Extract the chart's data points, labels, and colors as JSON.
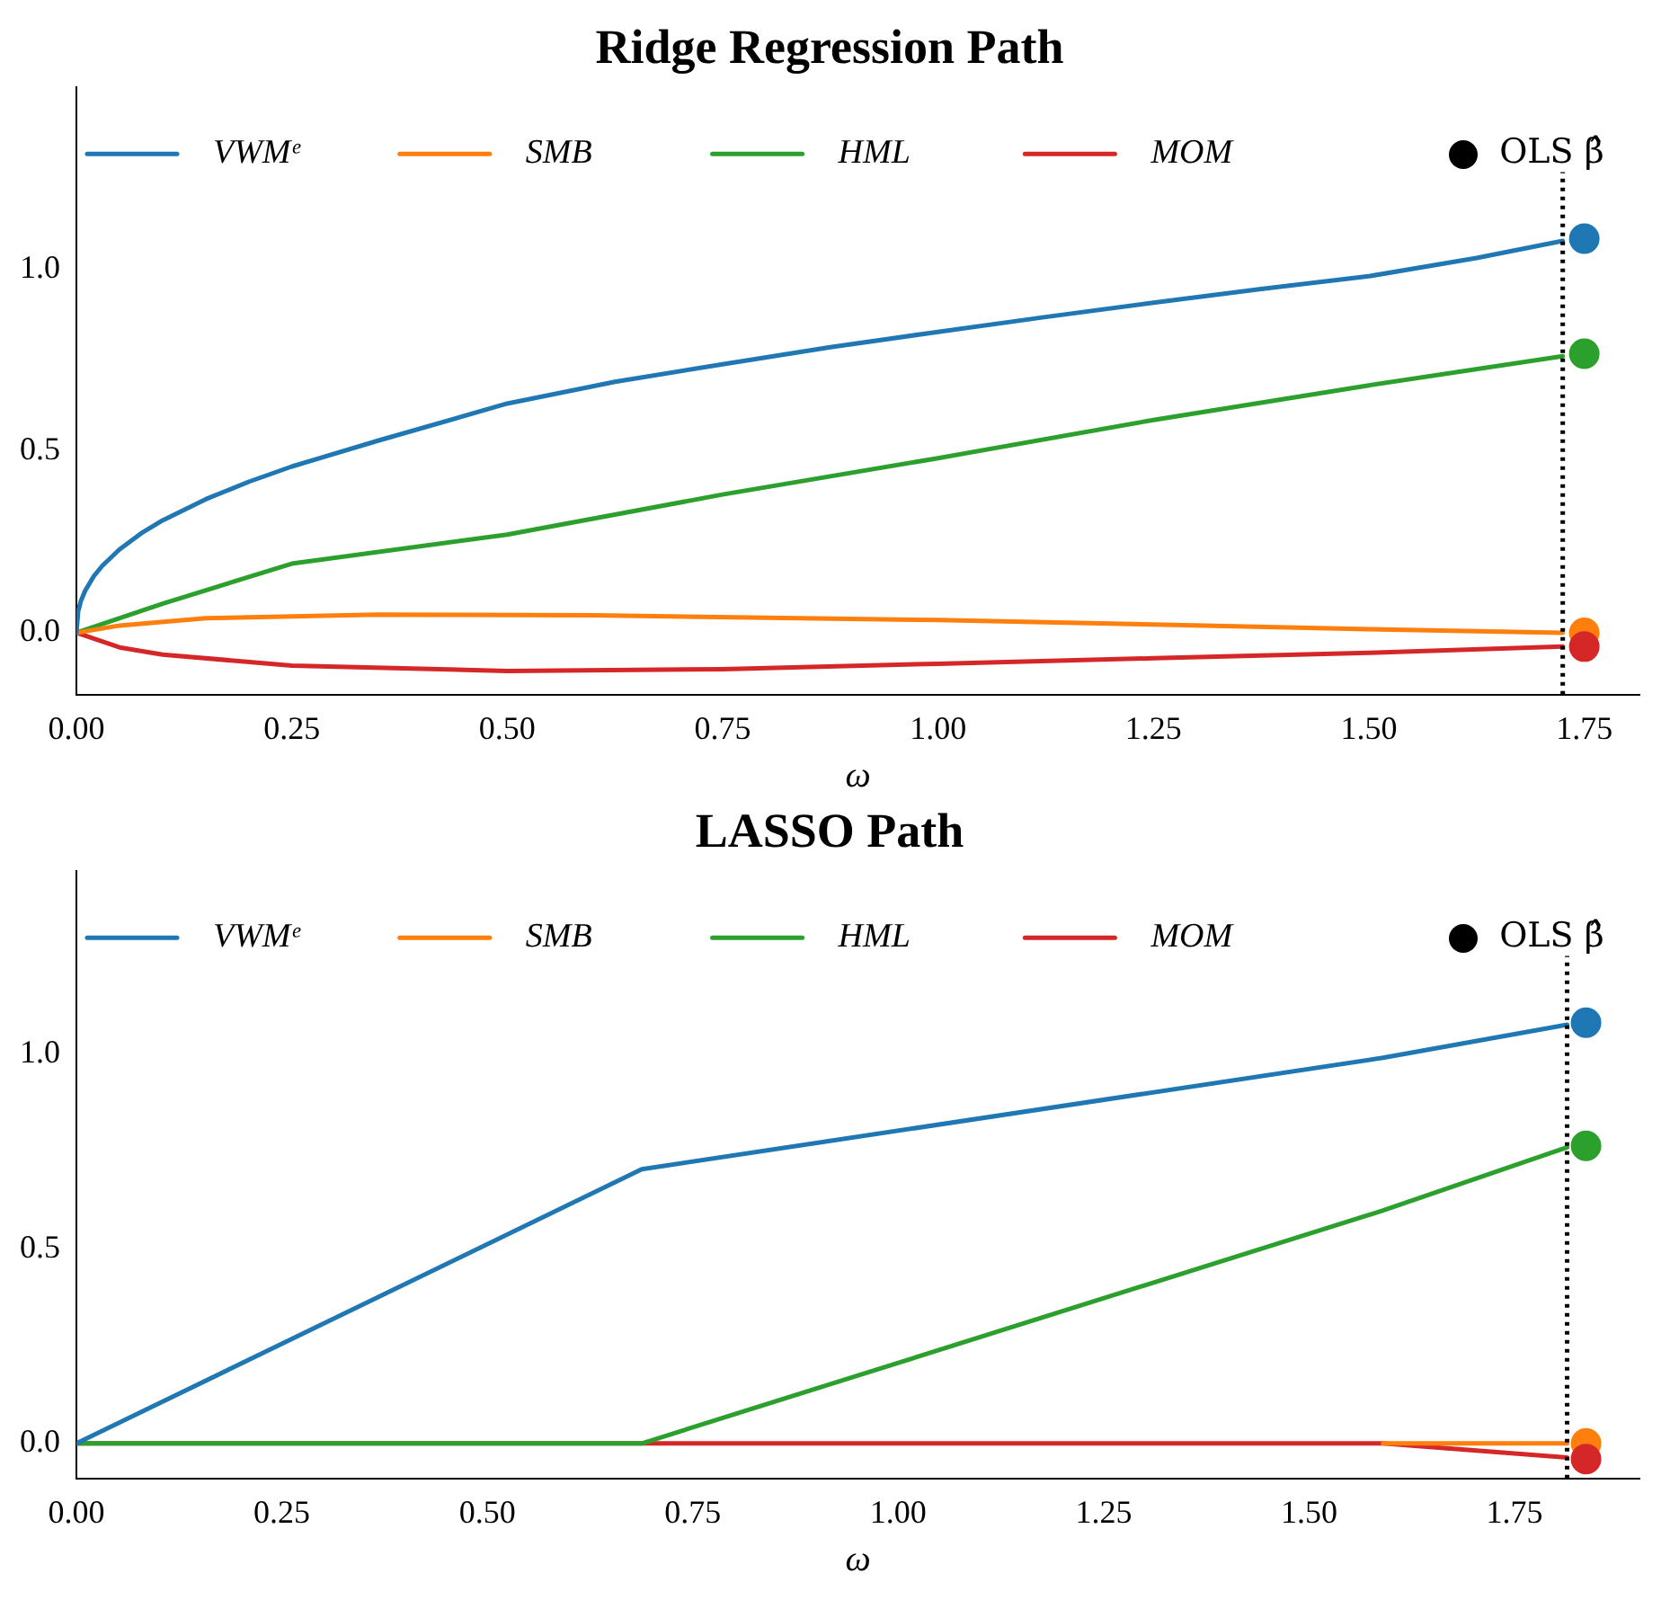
{
  "chart_data": [
    {
      "type": "line",
      "title": "Ridge Regression Path",
      "xlabel": "ω",
      "legend": "top",
      "grid": false,
      "marker": "none",
      "line_style": "solid",
      "xlim": [
        0,
        1.814
      ],
      "ylim": [
        -0.17,
        1.5
      ],
      "xticks": [
        {
          "value": 0,
          "label": "0.00"
        },
        {
          "value": 0.25,
          "label": "0.25"
        },
        {
          "value": 0.5,
          "label": "0.50"
        },
        {
          "value": 0.75,
          "label": "0.75"
        },
        {
          "value": 1,
          "label": "1.00"
        },
        {
          "value": 1.25,
          "label": "1.25"
        },
        {
          "value": 1.5,
          "label": "1.50"
        },
        {
          "value": 1.75,
          "label": "1.75"
        }
      ],
      "yticks": [
        {
          "value": 0,
          "label": "0.0"
        },
        {
          "value": 0.5,
          "label": "0.5"
        },
        {
          "value": 1,
          "label": "1.0"
        }
      ],
      "ref_lines": [
        {
          "axis": "x",
          "value": 1.725,
          "color": "#000000",
          "line_style": "dotted"
        }
      ],
      "series": [
        {
          "name": "VWMᵉ",
          "color": "#1f77b4",
          "x": [
            0,
            0.002,
            0.005,
            0.01,
            0.02,
            0.03,
            0.05,
            0.075,
            0.1,
            0.15,
            0.2,
            0.25,
            0.35,
            0.5,
            0.625,
            0.75,
            0.875,
            1,
            1.125,
            1.25,
            1.375,
            1.5,
            1.625,
            1.725
          ],
          "values": [
            0,
            0.058,
            0.086,
            0.115,
            0.155,
            0.184,
            0.229,
            0.273,
            0.309,
            0.367,
            0.415,
            0.457,
            0.528,
            0.63,
            0.69,
            0.738,
            0.785,
            0.827,
            0.868,
            0.907,
            0.945,
            0.98,
            1.03,
            1.077
          ]
        },
        {
          "name": "SMB",
          "color": "#ff7f0e",
          "x": [
            0,
            0.05,
            0.15,
            0.35,
            0.6,
            1,
            1.25,
            1.5,
            1.725
          ],
          "values": [
            0,
            0.02,
            0.04,
            0.05,
            0.048,
            0.035,
            0.023,
            0.01,
            0
          ]
        },
        {
          "name": "HML",
          "color": "#2ca02c",
          "x": [
            0,
            0.1,
            0.25,
            0.5,
            0.75,
            1,
            1.25,
            1.5,
            1.725
          ],
          "values": [
            0,
            0.08,
            0.19,
            0.27,
            0.38,
            0.48,
            0.585,
            0.68,
            0.76
          ]
        },
        {
          "name": "MOM",
          "color": "#d62728",
          "x": [
            0,
            0.05,
            0.1,
            0.25,
            0.5,
            0.75,
            1,
            1.25,
            1.5,
            1.725
          ],
          "values": [
            0,
            -0.04,
            -0.06,
            -0.09,
            -0.105,
            -0.1,
            -0.085,
            -0.07,
            -0.055,
            -0.038
          ]
        },
        {
          "name": "OLS β̂",
          "type": "scatter",
          "marker": "circle",
          "color": "#000000",
          "colors": [
            "#1f77b4",
            "#ff7f0e",
            "#2ca02c",
            "#d62728"
          ],
          "x": [
            1.75,
            1.75,
            1.75,
            1.75
          ],
          "values": [
            1.083,
            0,
            0.767,
            -0.038
          ]
        }
      ]
    },
    {
      "type": "line",
      "title": "LASSO Path",
      "xlabel": "ω",
      "legend": "top",
      "grid": false,
      "marker": "none",
      "line_style": "solid",
      "xlim": [
        0,
        1.902
      ],
      "ylim": [
        -0.09,
        1.47
      ],
      "xticks": [
        {
          "value": 0,
          "label": "0.00"
        },
        {
          "value": 0.25,
          "label": "0.25"
        },
        {
          "value": 0.5,
          "label": "0.50"
        },
        {
          "value": 0.75,
          "label": "0.75"
        },
        {
          "value": 1,
          "label": "1.00"
        },
        {
          "value": 1.25,
          "label": "1.25"
        },
        {
          "value": 1.5,
          "label": "1.50"
        },
        {
          "value": 1.75,
          "label": "1.75"
        }
      ],
      "yticks": [
        {
          "value": 0,
          "label": "0.0"
        },
        {
          "value": 0.5,
          "label": "0.5"
        },
        {
          "value": 1,
          "label": "1.0"
        }
      ],
      "ref_lines": [
        {
          "axis": "x",
          "value": 1.814,
          "color": "#000000",
          "line_style": "dotted"
        }
      ],
      "series": [
        {
          "name": "VWMᵉ",
          "color": "#1f77b4",
          "x": [
            0,
            0.688,
            1.59,
            1.814
          ],
          "values": [
            0,
            0.704,
            0.99,
            1.075
          ]
        },
        {
          "name": "SMB",
          "color": "#ff7f0e",
          "x": [
            1.59,
            1.814
          ],
          "values": [
            0,
            0
          ]
        },
        {
          "name": "HML",
          "color": "#2ca02c",
          "x": [
            0,
            0.688,
            1.59,
            1.814
          ],
          "values": [
            0,
            0,
            0.598,
            0.76
          ]
        },
        {
          "name": "MOM",
          "color": "#d62728",
          "x": [
            0,
            0.688,
            1.59,
            1.814
          ],
          "values": [
            0,
            0,
            0,
            -0.036
          ]
        },
        {
          "name": "OLS β̂",
          "type": "scatter",
          "marker": "circle",
          "color": "#000000",
          "colors": [
            "#1f77b4",
            "#ff7f0e",
            "#2ca02c",
            "#d62728"
          ],
          "x": [
            1.837,
            1.837,
            1.837,
            1.837
          ],
          "values": [
            1.08,
            0,
            0.764,
            -0.04
          ]
        }
      ]
    }
  ]
}
